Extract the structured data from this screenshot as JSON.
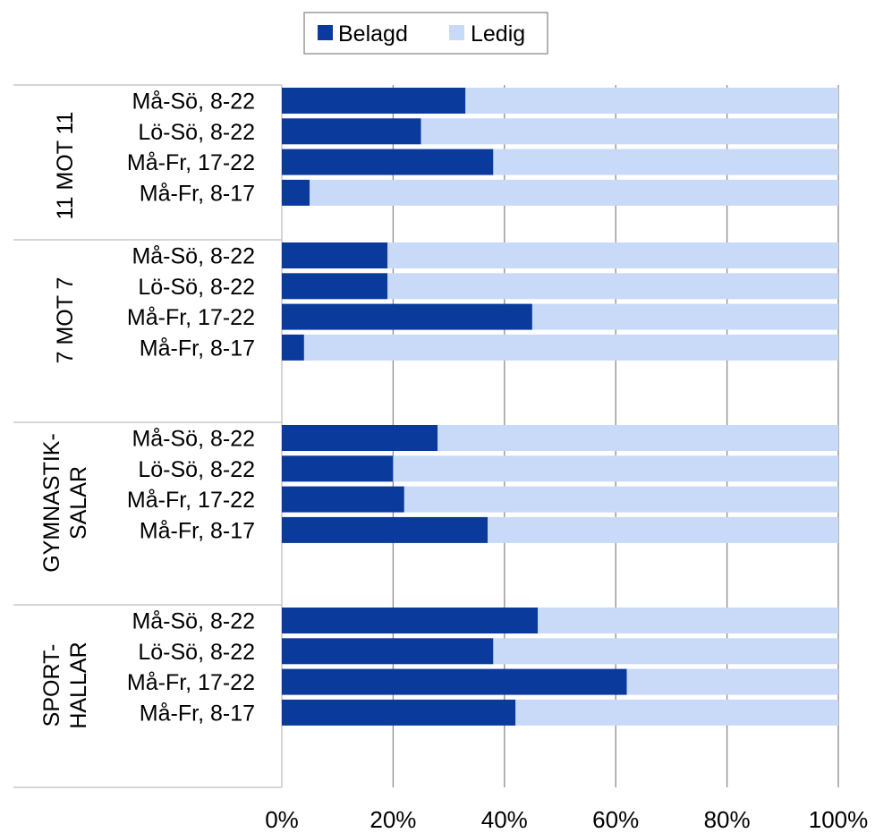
{
  "chart_data": {
    "type": "bar",
    "orientation": "horizontal",
    "stacked": true,
    "percent_stacked": true,
    "title": "",
    "xlabel": "",
    "ylabel": "",
    "xlim": [
      0,
      100
    ],
    "x_ticks": [
      "0%",
      "20%",
      "40%",
      "60%",
      "80%",
      "100%"
    ],
    "grid": "vertical",
    "legend": {
      "position": "top-center",
      "entries": [
        {
          "name": "Belagd",
          "color": "#0a3a9c"
        },
        {
          "name": "Ledig",
          "color": "#c8daf8"
        }
      ]
    },
    "groups": [
      {
        "label_lines": [
          "11 MOT 11"
        ],
        "categories": [
          "Må-Sö, 8-22",
          "Lö-Sö, 8-22",
          "Må-Fr, 17-22",
          "Må-Fr, 8-17"
        ],
        "belagd": [
          33,
          25,
          38,
          5
        ],
        "ledig": [
          67,
          75,
          62,
          95
        ]
      },
      {
        "label_lines": [
          "7 MOT 7"
        ],
        "categories": [
          "Må-Sö, 8-22",
          "Lö-Sö, 8-22",
          "Må-Fr, 17-22",
          "Må-Fr, 8-17"
        ],
        "belagd": [
          19,
          19,
          45,
          4
        ],
        "ledig": [
          81,
          81,
          55,
          96
        ]
      },
      {
        "label_lines": [
          "GYMNASTIK-",
          "SALAR"
        ],
        "categories": [
          "Må-Sö, 8-22",
          "Lö-Sö, 8-22",
          "Må-Fr, 17-22",
          "Må-Fr, 8-17"
        ],
        "belagd": [
          28,
          20,
          22,
          37
        ],
        "ledig": [
          72,
          80,
          78,
          63
        ]
      },
      {
        "label_lines": [
          "SPORT-",
          "HALLAR"
        ],
        "categories": [
          "Må-Sö, 8-22",
          "Lö-Sö, 8-22",
          "Må-Fr, 17-22",
          "Må-Fr, 8-17"
        ],
        "belagd": [
          46,
          38,
          62,
          42
        ],
        "ledig": [
          54,
          62,
          38,
          58
        ]
      }
    ]
  }
}
